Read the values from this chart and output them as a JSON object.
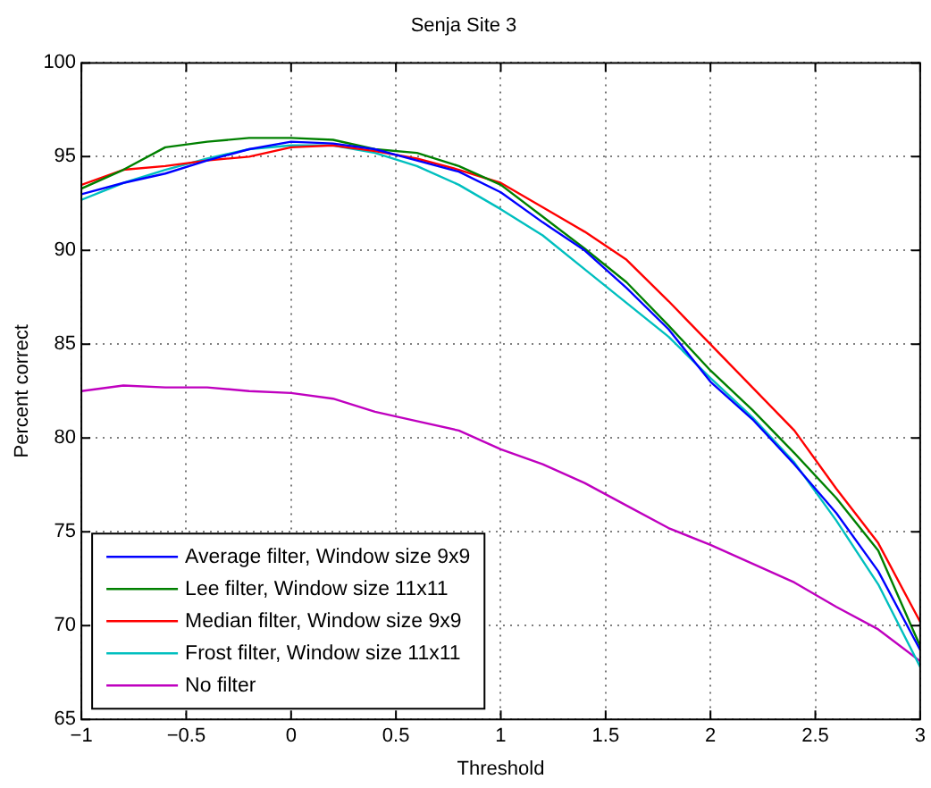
{
  "chart_data": {
    "type": "line",
    "title": "Senja Site 3",
    "xlabel": "Threshold",
    "ylabel": "Percent correct",
    "x": [
      -1,
      -0.8,
      -0.6,
      -0.4,
      -0.2,
      0,
      0.2,
      0.4,
      0.6,
      0.8,
      1,
      1.2,
      1.4,
      1.6,
      1.8,
      2,
      2.2,
      2.4,
      2.6,
      2.8,
      3
    ],
    "series": [
      {
        "name": "Average filter, Window size 9x9",
        "color": "#0000ff",
        "values": [
          93.0,
          93.6,
          94.1,
          94.8,
          95.4,
          95.8,
          95.7,
          95.4,
          94.8,
          94.2,
          93.1,
          91.5,
          90.0,
          88.0,
          85.8,
          83.0,
          81.0,
          78.6,
          76.0,
          72.9,
          68.7
        ]
      },
      {
        "name": "Lee filter, Window size 11x11",
        "color": "#008000",
        "values": [
          93.3,
          94.3,
          95.5,
          95.8,
          96.0,
          96.0,
          95.9,
          95.4,
          95.2,
          94.5,
          93.5,
          91.8,
          90.1,
          88.3,
          86.0,
          83.6,
          81.5,
          79.2,
          76.8,
          74.0,
          68.9
        ]
      },
      {
        "name": "Median filter, Window size 9x9",
        "color": "#ff0000",
        "values": [
          93.5,
          94.3,
          94.5,
          94.8,
          95.0,
          95.5,
          95.6,
          95.3,
          94.9,
          94.3,
          93.6,
          92.3,
          91.0,
          89.5,
          87.3,
          85.0,
          82.7,
          80.4,
          77.3,
          74.4,
          70.2
        ]
      },
      {
        "name": "Frost filter, Window size 11x11",
        "color": "#00bfbf",
        "values": [
          92.7,
          93.6,
          94.3,
          94.9,
          95.4,
          95.6,
          95.6,
          95.2,
          94.5,
          93.5,
          92.2,
          90.8,
          89.0,
          87.2,
          85.4,
          83.2,
          81.1,
          78.7,
          75.6,
          72.2,
          67.8
        ]
      },
      {
        "name": "No filter",
        "color": "#bf00bf",
        "values": [
          82.5,
          82.8,
          82.7,
          82.7,
          82.5,
          82.4,
          82.1,
          81.4,
          80.9,
          80.4,
          79.4,
          78.6,
          77.6,
          76.4,
          75.2,
          74.3,
          73.3,
          72.3,
          71.0,
          69.8,
          68.1
        ]
      }
    ],
    "xlim": [
      -1,
      3
    ],
    "xticks": [
      {
        "value": -1,
        "label": "−1"
      },
      {
        "value": -0.5,
        "label": "−0.5"
      },
      0,
      0.5,
      1,
      1.5,
      2,
      2.5,
      3
    ],
    "ylim": [
      65,
      100
    ],
    "yticks": [
      65,
      70,
      75,
      80,
      85,
      90,
      95,
      100
    ],
    "grid": true,
    "legend": "bottom left",
    "marker": "none",
    "line_style": "solid"
  }
}
